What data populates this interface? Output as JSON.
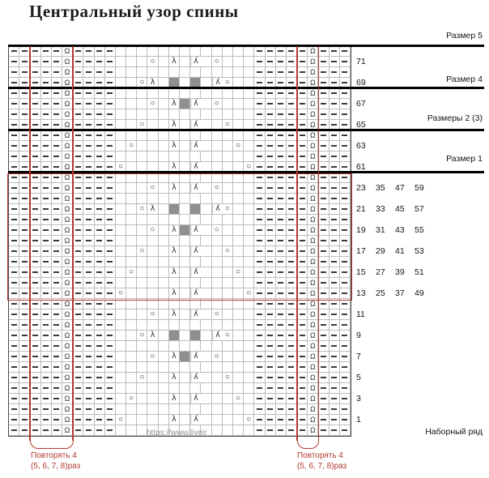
{
  "title": "Центральный узор спины",
  "watermark": "https://www.liveir",
  "colors": {
    "accent_red": "#b03a2e",
    "grid_line": "#bcbcbc",
    "no_stitch_gray": "#8f8f8f",
    "separator_black": "#000000"
  },
  "labels": {
    "size5": "Размер 5",
    "size4": "Размер 4",
    "size23": "Размеры 2 (3)",
    "size1": "Размер 1",
    "cast_on": "Наборный ряд",
    "repeat_left": {
      "line1": "Повторять 4",
      "line2": "(5, 6, 7, 8)раз"
    },
    "repeat_right": {
      "line1": "Повторять 4",
      "line2": "(5, 6, 7, 8)раз"
    }
  },
  "chart_data": {
    "type": "knitting-grid",
    "columns": 32,
    "rows_top_to_bottom": [
      "-----Q----.............-----Q---",
      "-----Q----...O.L.R.O...-----Q---",
      "-----Q----.............-----Q---",
      "-----Q----..OL.#.#.RO..-----Q---",
      "-----Q----.............-----Q---",
      "-----Q----...O.L#R.O...-----Q---",
      "-----Q----.............-----Q---",
      "-----Q----..O..L.R..O..-----Q---",
      "-----Q----.............-----Q---",
      "-----Q----.O...L.R...O.-----Q---",
      "-----Q----.............-----Q---",
      "-----Q----O....L.R....O-----Q---",
      "-----Q----.............-----Q---",
      "-----Q----...O.L.R.O...-----Q---",
      "-----Q----.............-----Q---",
      "-----Q----..OL.#.#.RO..-----Q---",
      "-----Q----.............-----Q---",
      "-----Q----...O.L#R.O...-----Q---",
      "-----Q----.............-----Q---",
      "-----Q----..O..L.R..O..-----Q---",
      "-----Q----.............-----Q---",
      "-----Q----.O...L.R...O.-----Q---",
      "-----Q----.............-----Q---",
      "-----Q----O....L.R....O-----Q---",
      "-----Q----.............-----Q---",
      "-----Q----...O.L.R.O...-----Q---",
      "-----Q----.............-----Q---",
      "-----Q----..OL.#.#.RO..-----Q---",
      "-----Q----.............-----Q---",
      "-----Q----...O.L#R.O...-----Q---",
      "-----Q----.............-----Q---",
      "-----Q----..O..L.R..O..-----Q---",
      "-----Q----.............-----Q---",
      "-----Q----.O...L.R...O.-----Q---",
      "-----Q----.............-----Q---",
      "-----Q----O....L.R....O-----Q---",
      "-----Q----.............-----Q---"
    ],
    "legend": {
      "-": "purl dash",
      "Q": "twisted stitch (omega)",
      "O": "yarn over",
      "L": "left-leaning decrease",
      "R": "right-leaning decrease",
      "#": "no stitch (gray)",
      ".": "knit (empty)"
    },
    "row_labels": [
      {
        "row": 1,
        "labels": [
          "71"
        ]
      },
      {
        "row": 3,
        "labels": [
          "69"
        ]
      },
      {
        "row": 5,
        "labels": [
          "67"
        ]
      },
      {
        "row": 7,
        "labels": [
          "65"
        ]
      },
      {
        "row": 9,
        "labels": [
          "63"
        ]
      },
      {
        "row": 11,
        "labels": [
          "61"
        ]
      },
      {
        "row": 13,
        "labels": [
          "23",
          "35",
          "47",
          "59"
        ]
      },
      {
        "row": 15,
        "labels": [
          "21",
          "33",
          "45",
          "57"
        ]
      },
      {
        "row": 17,
        "labels": [
          "19",
          "31",
          "43",
          "55"
        ]
      },
      {
        "row": 19,
        "labels": [
          "17",
          "29",
          "41",
          "53"
        ]
      },
      {
        "row": 21,
        "labels": [
          "15",
          "27",
          "39",
          "51"
        ]
      },
      {
        "row": 23,
        "labels": [
          "13",
          "25",
          "37",
          "49"
        ]
      },
      {
        "row": 25,
        "labels": [
          "11"
        ]
      },
      {
        "row": 27,
        "labels": [
          "9"
        ]
      },
      {
        "row": 29,
        "labels": [
          "7"
        ]
      },
      {
        "row": 31,
        "labels": [
          "5"
        ]
      },
      {
        "row": 33,
        "labels": [
          "3"
        ]
      },
      {
        "row": 35,
        "labels": [
          "1"
        ]
      }
    ]
  }
}
